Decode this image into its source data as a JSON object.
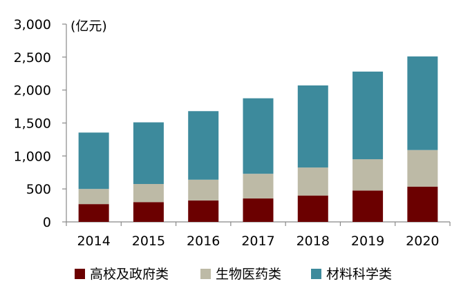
{
  "chart_data": {
    "type": "bar",
    "stacked": true,
    "unit_label": "(亿元)",
    "categories": [
      "2014",
      "2015",
      "2016",
      "2017",
      "2018",
      "2019",
      "2020"
    ],
    "series": [
      {
        "name": "高校及政府类",
        "color": "#6b0000",
        "values": [
          270,
          300,
          325,
          355,
          400,
          475,
          535
        ]
      },
      {
        "name": "生物医药类",
        "color": "#bdbaa6",
        "values": [
          230,
          275,
          315,
          375,
          425,
          475,
          555
        ]
      },
      {
        "name": "材料科学类",
        "color": "#3d8a9c",
        "values": [
          855,
          935,
          1040,
          1145,
          1245,
          1330,
          1420
        ]
      }
    ],
    "ylim": [
      0,
      3000
    ],
    "yticks": [
      0,
      500,
      1000,
      1500,
      2000,
      2500,
      3000
    ],
    "ytick_labels": [
      "0",
      "500",
      "1,000",
      "1,500",
      "2,000",
      "2,500",
      "3,000"
    ],
    "grid": false,
    "legend_position": "bottom"
  }
}
